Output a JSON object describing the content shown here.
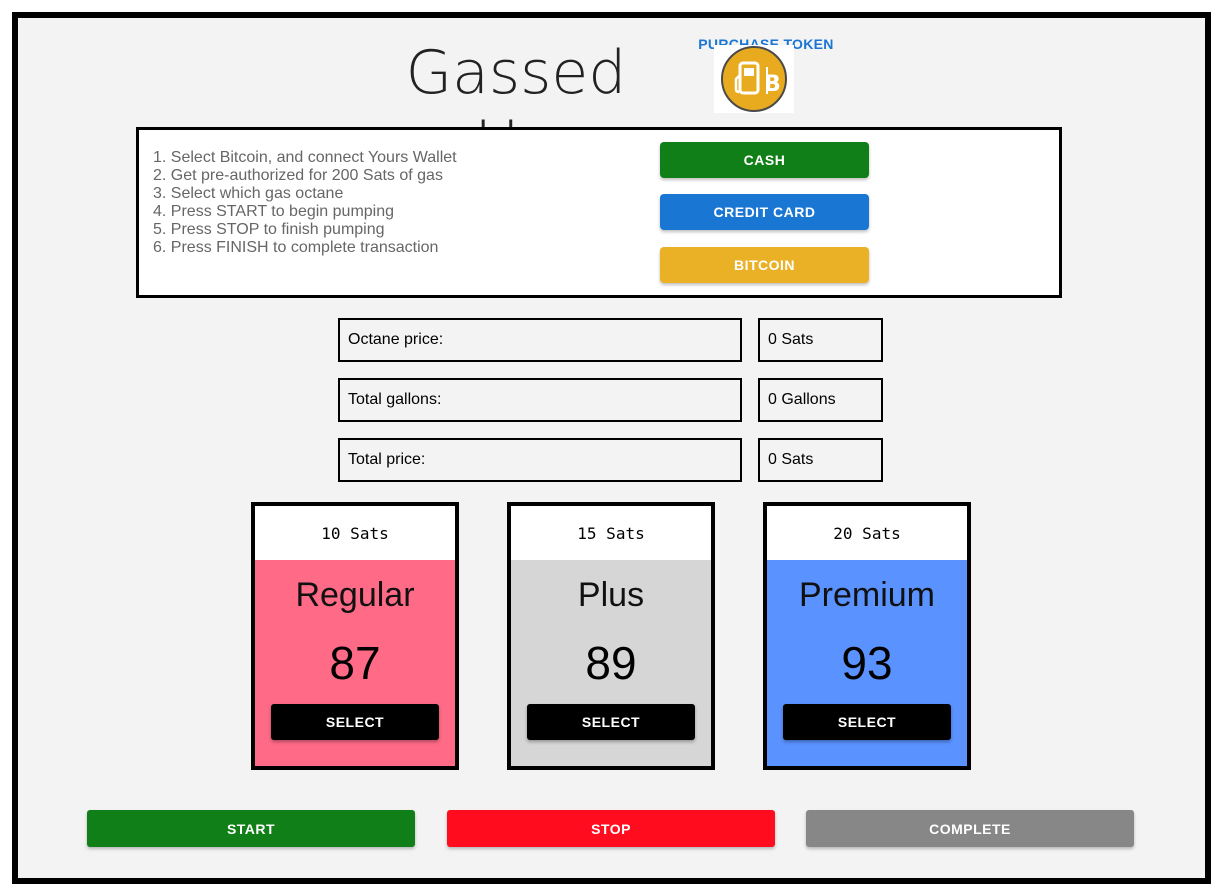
{
  "app": {
    "title": "Gassed Up"
  },
  "token": {
    "label": "PURCHASE TOKEN",
    "icon": "bitcoin-gas-pump-icon"
  },
  "instructions": {
    "steps": [
      "1. Select Bitcoin, and connect Yours Wallet",
      "2. Get pre-authorized for 200 Sats of gas",
      "3. Select which gas octane",
      "4. Press START to begin pumping",
      "5. Press STOP to finish pumping",
      "6. Press FINISH to complete transaction"
    ]
  },
  "payment": {
    "cash": "CASH",
    "credit_card": "CREDIT CARD",
    "bitcoin": "BITCOIN"
  },
  "summary": {
    "octane_label": "Octane price:",
    "octane_value": "0 Sats",
    "gallons_label": "Total gallons:",
    "gallons_value": "0 Gallons",
    "price_label": "Total price:",
    "price_value": "0 Sats"
  },
  "octanes": [
    {
      "price": "10 Sats",
      "name": "Regular",
      "number": "87",
      "select": "SELECT"
    },
    {
      "price": "15 Sats",
      "name": "Plus",
      "number": "89",
      "select": "SELECT"
    },
    {
      "price": "20 Sats",
      "name": "Premium",
      "number": "93",
      "select": "SELECT"
    }
  ],
  "actions": {
    "start": "START",
    "stop": "STOP",
    "complete": "COMPLETE"
  },
  "colors": {
    "cash": "#117f17",
    "credit_card": "#1976d2",
    "bitcoin": "#eab127",
    "regular": "#ff6a87",
    "plus": "#d6d6d6",
    "premium": "#5a92ff",
    "start": "#117f17",
    "stop": "#ff0d1f",
    "complete": "#878787"
  }
}
